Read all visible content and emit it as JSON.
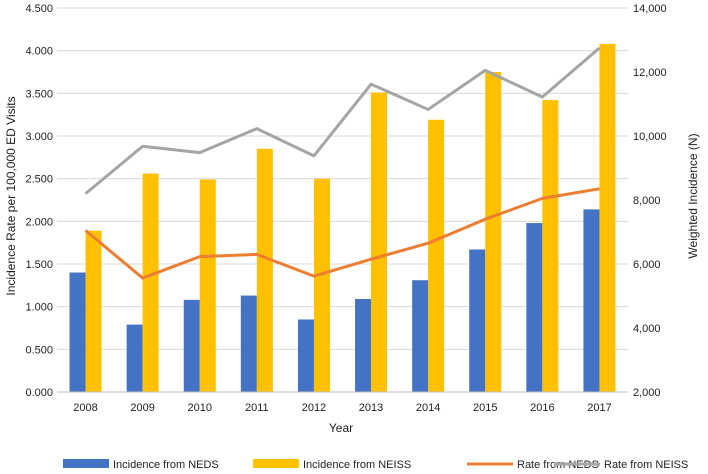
{
  "chart_data": {
    "type": "bar",
    "title": "",
    "xlabel": "Year",
    "ylabel": "Incidence Rate  per 100,000 ED Visits",
    "y2label": "Weighted Incidence (N)",
    "categories": [
      "2008",
      "2009",
      "2010",
      "2011",
      "2012",
      "2013",
      "2014",
      "2015",
      "2016",
      "2017"
    ],
    "ylim": [
      0,
      4.5
    ],
    "y_ticks": [
      "0.000",
      "0.500",
      "1.000",
      "1.500",
      "2.000",
      "2.500",
      "3.000",
      "3.500",
      "4.000",
      "4.500"
    ],
    "y2lim": [
      2000,
      14000
    ],
    "y2_ticks": [
      "2,000",
      "4,000",
      "6,000",
      "8,000",
      "10,000",
      "12,000",
      "14,000"
    ],
    "grid": true,
    "legend_position": "bottom",
    "series": [
      {
        "name": "Incidence from NEDS",
        "kind": "bar",
        "axis": "left",
        "color": "#4472C4",
        "values": [
          1.4,
          0.79,
          1.08,
          1.13,
          0.85,
          1.09,
          1.31,
          1.67,
          1.98,
          2.14
        ]
      },
      {
        "name": "Incidence from NEISS",
        "kind": "bar",
        "axis": "left",
        "color": "#FFC000",
        "values": [
          1.89,
          2.56,
          2.49,
          2.85,
          2.5,
          3.51,
          3.19,
          3.75,
          3.42,
          4.08
        ]
      },
      {
        "name": "Rate from NEDS",
        "kind": "line",
        "axis": "right",
        "color": "#ED7D31",
        "values": [
          7050,
          5560,
          6230,
          6300,
          5620,
          6150,
          6650,
          7400,
          8050,
          8350
        ]
      },
      {
        "name": "Rate from NEISS",
        "kind": "line",
        "axis": "right",
        "color": "#A5A5A5",
        "values": [
          8200,
          9680,
          9480,
          10230,
          9380,
          11620,
          10830,
          12050,
          11220,
          12750
        ]
      }
    ]
  }
}
